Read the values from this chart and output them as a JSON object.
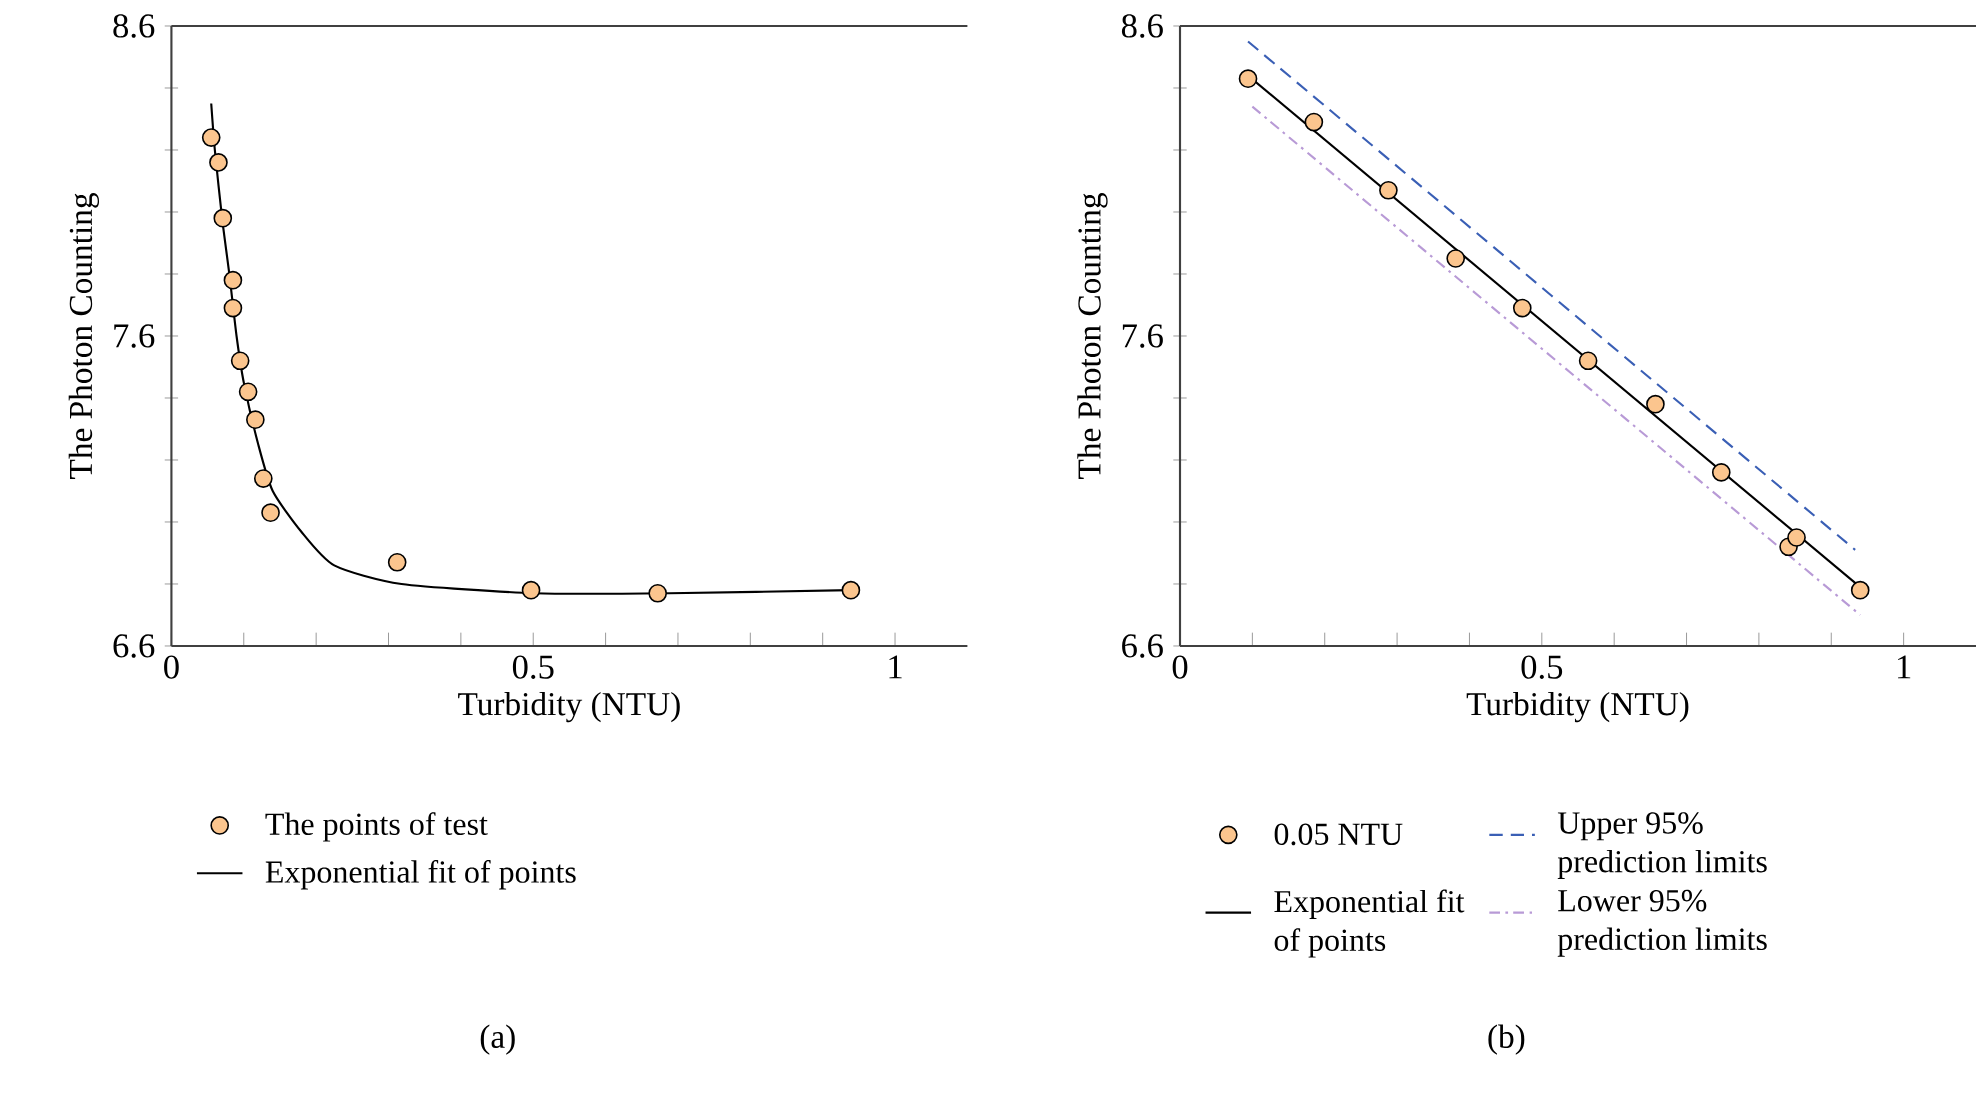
{
  "chart_data": [
    {
      "type": "scatter",
      "xlabel": "Turbidity (NTU)",
      "ylabel": "The Photon Counting",
      "annotations": [
        "(a)"
      ],
      "xlim": [
        0,
        1.1
      ],
      "ylim": [
        6.6,
        8.6
      ],
      "xticks": [
        0,
        {
          "value": 0.1,
          "label": null
        },
        {
          "value": 0.2,
          "label": null
        },
        {
          "value": 0.3,
          "label": null
        },
        {
          "value": 0.4,
          "label": null
        },
        0.5,
        {
          "value": 0.6,
          "label": null
        },
        {
          "value": 0.7,
          "label": null
        },
        {
          "value": 0.8,
          "label": null
        },
        {
          "value": 0.9,
          "label": null
        },
        1
      ],
      "yticks": [
        6.6,
        {
          "value": 6.8,
          "label": null
        },
        {
          "value": 7.0,
          "label": null
        },
        {
          "value": 7.2,
          "label": null
        },
        {
          "value": 7.4,
          "label": null
        },
        7.6,
        {
          "value": 7.8,
          "label": null
        },
        {
          "value": 8.0,
          "label": null
        },
        {
          "value": 8.2,
          "label": null
        },
        {
          "value": 8.4,
          "label": null
        },
        8.6
      ],
      "legend": "bottom",
      "series": [
        {
          "name": "The points of test",
          "marker": "circle",
          "color": "#fbc58e",
          "x": [
            0.055,
            0.065,
            0.071,
            0.085,
            0.085,
            0.095,
            0.106,
            0.116,
            0.127,
            0.137,
            0.312,
            0.497,
            0.672,
            0.939
          ],
          "values": [
            8.24,
            8.16,
            7.98,
            7.78,
            7.69,
            7.52,
            7.42,
            7.33,
            7.14,
            7.03,
            6.87,
            6.78,
            6.77,
            6.78
          ]
        },
        {
          "name": "Exponential fit of points",
          "type": "line",
          "marker": "none",
          "color": "#000000",
          "line_style": "solid",
          "x": [
            0.055,
            0.06,
            0.07,
            0.08,
            0.09,
            0.1,
            0.12,
            0.14,
            0.179,
            0.225,
            0.318,
            0.503,
            0.688,
            0.938
          ],
          "values": [
            8.35,
            8.2,
            7.98,
            7.8,
            7.6,
            7.45,
            7.25,
            7.1,
            6.97,
            6.86,
            6.8,
            6.77,
            6.77,
            6.78
          ]
        }
      ]
    },
    {
      "type": "scatter",
      "xlabel": "Turbidity (NTU)",
      "ylabel": "The Photon Counting",
      "annotations": [
        "(b)"
      ],
      "xlim": [
        0,
        1.1
      ],
      "ylim": [
        6.6,
        8.6
      ],
      "xticks": [
        0,
        {
          "value": 0.1,
          "label": null
        },
        {
          "value": 0.2,
          "label": null
        },
        {
          "value": 0.3,
          "label": null
        },
        {
          "value": 0.4,
          "label": null
        },
        0.5,
        {
          "value": 0.6,
          "label": null
        },
        {
          "value": 0.7,
          "label": null
        },
        {
          "value": 0.8,
          "label": null
        },
        {
          "value": 0.9,
          "label": null
        },
        1
      ],
      "yticks": [
        6.6,
        {
          "value": 6.8,
          "label": null
        },
        {
          "value": 7.0,
          "label": null
        },
        {
          "value": 7.2,
          "label": null
        },
        {
          "value": 7.4,
          "label": null
        },
        7.6,
        {
          "value": 7.8,
          "label": null
        },
        {
          "value": 8.0,
          "label": null
        },
        {
          "value": 8.2,
          "label": null
        },
        {
          "value": 8.4,
          "label": null
        },
        8.6
      ],
      "legend": "bottom",
      "series": [
        {
          "name": "0.05 NTU",
          "marker": "circle",
          "color": "#fbc58e",
          "x": [
            0.094,
            0.185,
            0.288,
            0.381,
            0.473,
            0.564,
            0.657,
            0.748,
            0.841,
            0.852,
            0.94
          ],
          "values": [
            8.43,
            8.29,
            8.07,
            7.85,
            7.69,
            7.52,
            7.38,
            7.16,
            6.92,
            6.95,
            6.78
          ]
        },
        {
          "name": "Exponential fit of points",
          "type": "line",
          "marker": "none",
          "color": "#000000",
          "line_style": "solid",
          "x": [
            0.094,
            0.94
          ],
          "values": [
            8.44,
            6.79
          ]
        },
        {
          "name": "Upper 95% prediction limits",
          "type": "line",
          "marker": "none",
          "color": "#3a5fb5",
          "line_style": "dashed",
          "x": [
            0.094,
            0.933
          ],
          "values": [
            8.55,
            6.91
          ]
        },
        {
          "name": "Lower 95% prediction limits",
          "type": "line",
          "marker": "none",
          "color": "#b89ad6",
          "line_style": "dashdot",
          "x": [
            0.1,
            0.94
          ],
          "values": [
            8.34,
            6.7
          ]
        }
      ]
    }
  ]
}
